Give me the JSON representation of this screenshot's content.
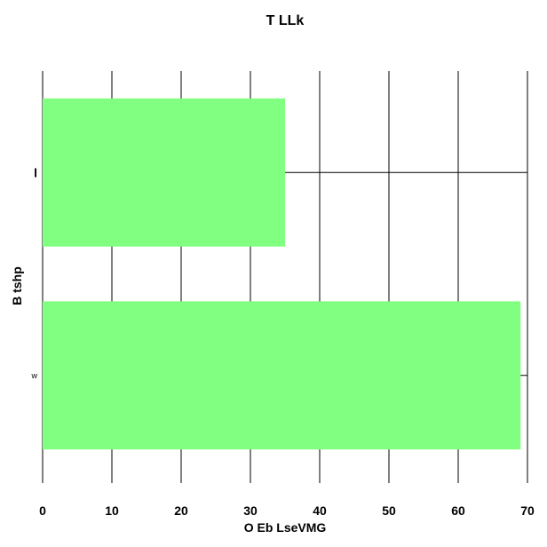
{
  "chart_data": {
    "type": "bar",
    "orientation": "horizontal",
    "title": "T LLk",
    "xlabel": "O Eb LseVMG",
    "ylabel": "B tshp",
    "categories": [
      "l",
      "w"
    ],
    "values": [
      35,
      69
    ],
    "xlim": [
      0,
      70
    ],
    "xticks": [
      0,
      10,
      20,
      30,
      40,
      50,
      60,
      70
    ],
    "grid": true,
    "bar_color": "#80ff80",
    "grid_color": "#000000"
  }
}
